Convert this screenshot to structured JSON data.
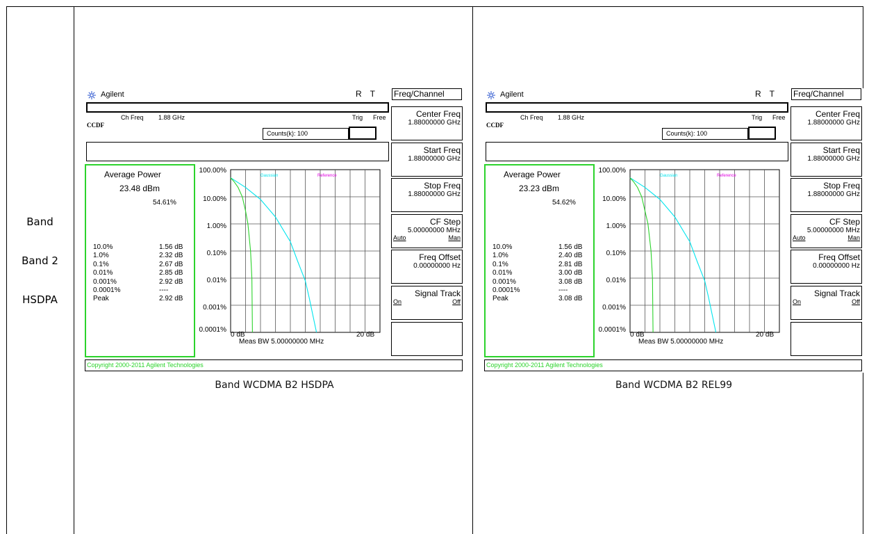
{
  "row": {
    "line1": "Band",
    "line2": "Band 2",
    "line3": "HSDPA"
  },
  "colors": {
    "green": "#2bd32b",
    "cyan": "#00e5ee",
    "magenta": "#e000e0",
    "logo": "#4b6fd6"
  },
  "shared": {
    "brand": "Agilent",
    "status_r": "R",
    "status_t": "T",
    "ch_freq_label": "Ch Freq",
    "ch_freq_value": "1.88 GHz",
    "trig_label": "Trig",
    "trig_value": "Free",
    "mode": "CCDF",
    "counts": "Counts(k): 100",
    "menu_title": "Freq/Channel",
    "softkeys": [
      {
        "label": "Center Freq",
        "value": "1.88000000 GHz"
      },
      {
        "label": "Start Freq",
        "value": "1.88000000 GHz"
      },
      {
        "label": "Stop Freq",
        "value": "1.88000000 GHz"
      },
      {
        "label": "CF Step",
        "value": "5.00000000 MHz",
        "opt_a": "Auto",
        "opt_b": "Man"
      },
      {
        "label": "Freq Offset",
        "value": "0.00000000  Hz"
      },
      {
        "label": "Signal Track",
        "opt_a": "On",
        "opt_b": "Off"
      }
    ],
    "avg_power_label": "Average Power",
    "stat_labels": [
      "10.0%",
      "1.0%",
      "0.1%",
      "0.01%",
      "0.001%",
      "0.0001%",
      "Peak"
    ],
    "y_tick_labels": [
      "100.00%",
      "10.00%",
      "1.00%",
      "0.10%",
      "0.01%",
      "0.001%",
      "0.0001%"
    ],
    "x_start_label": "0 dB",
    "x_end_label": "20 dB",
    "meas_bw": "Meas BW    5.00000000 MHz",
    "legend_gaussian": "Gaussian",
    "legend_reference": "Reference",
    "copyright": "Copyright 2000-2011 Agilent Technologies"
  },
  "left": {
    "caption": "Band WCDMA B2 HSDPA",
    "avg_power": "23.48 dBm",
    "avg_pct": "54.61%",
    "stat_values": [
      "1.56 dB",
      "2.32 dB",
      "2.67 dB",
      "2.85 dB",
      "2.92 dB",
      "----",
      "2.92 dB"
    ]
  },
  "right": {
    "caption": "Band WCDMA B2 REL99",
    "avg_power": "23.23 dBm",
    "avg_pct": "54.62%",
    "stat_values": [
      "1.56 dB",
      "2.40 dB",
      "2.81 dB",
      "3.00 dB",
      "3.08 dB",
      "----",
      "3.08 dB"
    ]
  },
  "chart_data": [
    {
      "type": "line",
      "xlabel": "",
      "ylabel": "",
      "xlim": [
        0,
        20
      ],
      "ylim": [
        0.0001,
        100
      ],
      "y_scale": "log",
      "series": [
        {
          "name": "Gaussian",
          "x": [
            0,
            2,
            4,
            6,
            8,
            9,
            10,
            10.5,
            11.5
          ],
          "y": [
            50,
            22,
            8,
            1.8,
            0.22,
            0.04,
            0.008,
            0.002,
            0.0001
          ]
        },
        {
          "name": "",
          "x": [
            0,
            0.5,
            1,
            1.56,
            2,
            2.32,
            2.67,
            2.85,
            2.92
          ],
          "y": [
            50,
            35,
            22,
            10,
            3,
            1,
            0.1,
            0.01,
            0.0001
          ]
        }
      ]
    },
    {
      "type": "line",
      "xlabel": "",
      "ylabel": "",
      "xlim": [
        0,
        20
      ],
      "ylim": [
        0.0001,
        100
      ],
      "y_scale": "log",
      "series": [
        {
          "name": "Gaussian",
          "x": [
            0,
            2,
            4,
            6,
            8,
            9,
            10,
            10.5,
            11.5
          ],
          "y": [
            50,
            22,
            8,
            1.8,
            0.22,
            0.04,
            0.008,
            0.002,
            0.0001
          ]
        },
        {
          "name": "",
          "x": [
            0,
            0.5,
            1,
            1.56,
            2,
            2.4,
            2.81,
            3.0,
            3.08
          ],
          "y": [
            50,
            35,
            22,
            10,
            3,
            1,
            0.1,
            0.01,
            0.0001
          ]
        }
      ]
    }
  ]
}
